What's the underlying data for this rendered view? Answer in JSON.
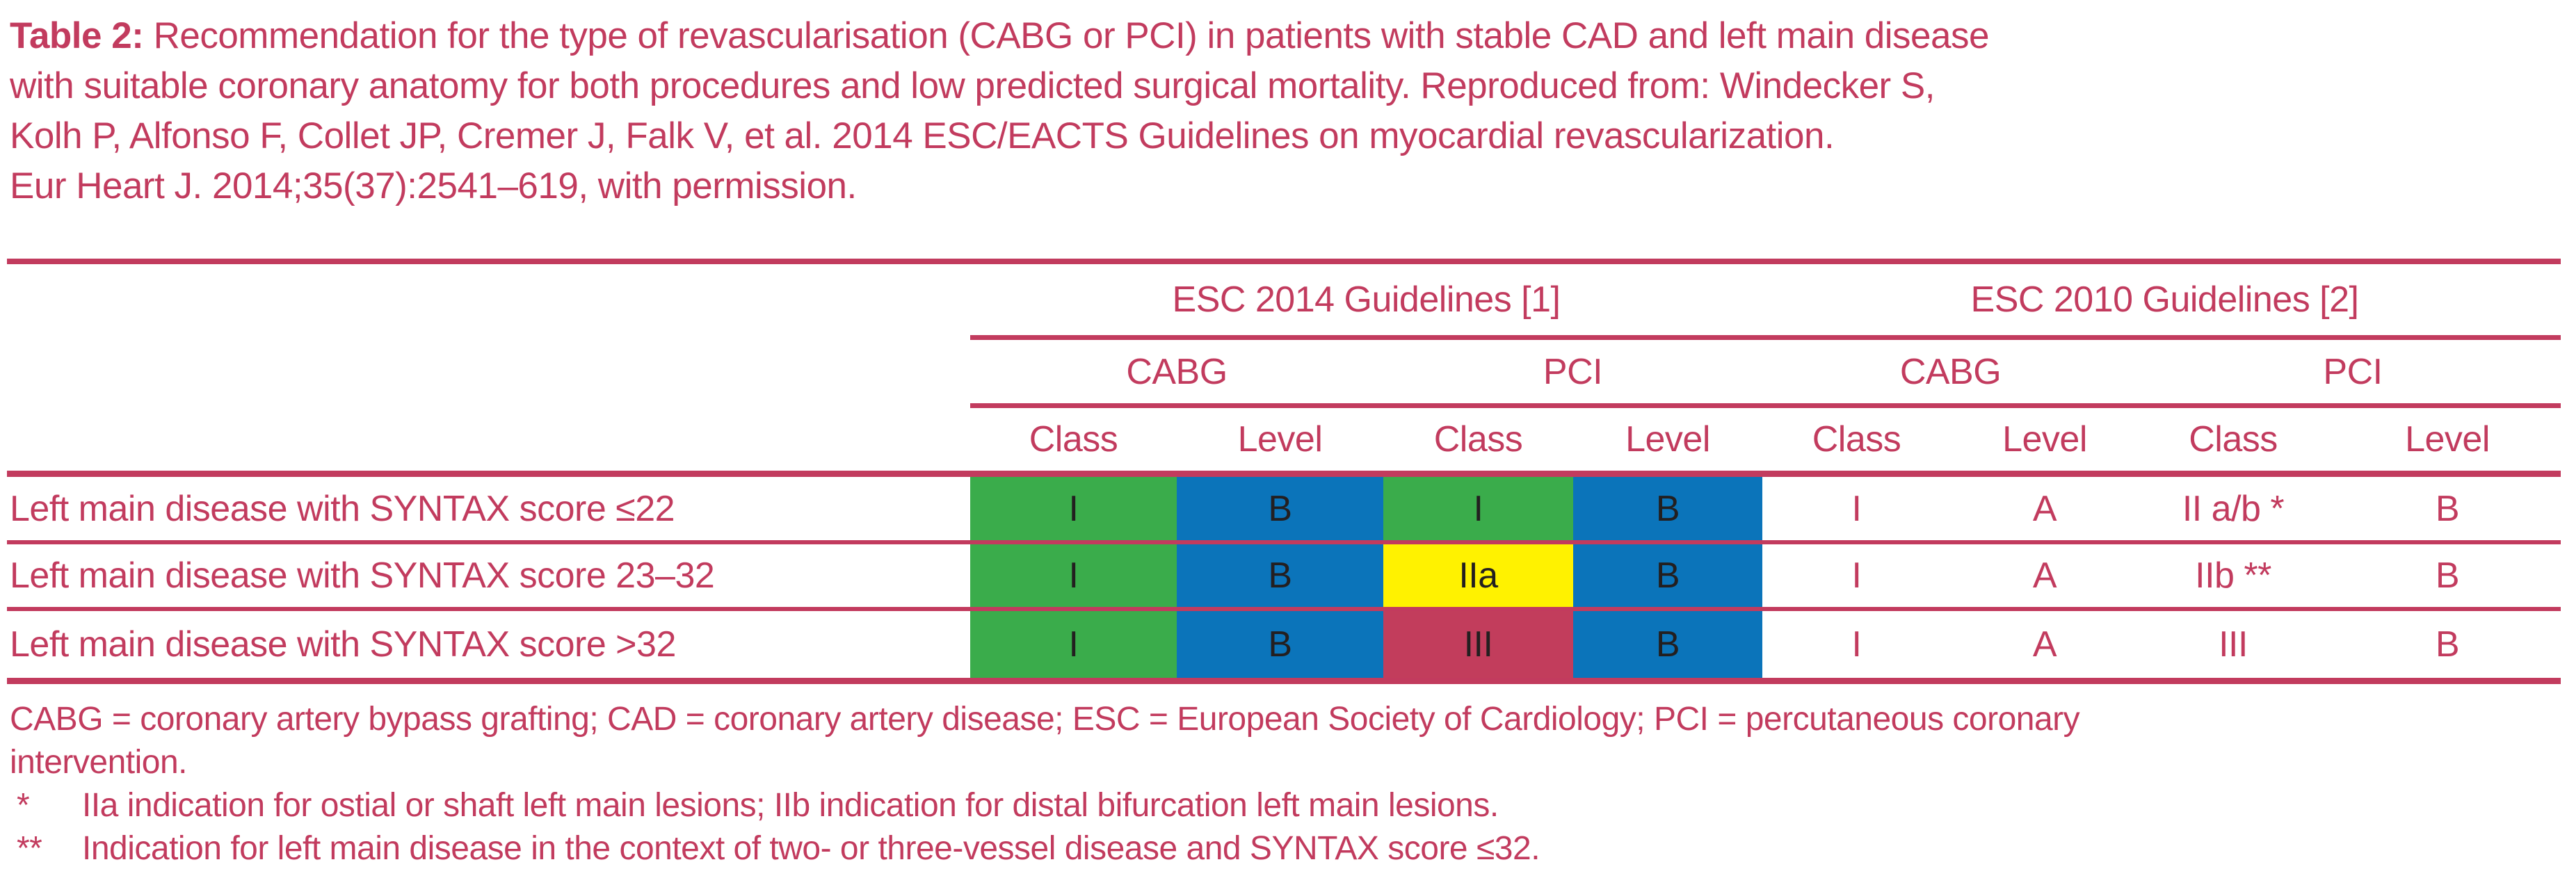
{
  "colors": {
    "crimson": "#c23b5e",
    "green": "#3aac4b",
    "blue": "#0b74ba",
    "yellow": "#fff200",
    "red_cell": "#c23d5c",
    "cell_text": "#231f20",
    "none": "none"
  },
  "caption": {
    "label": "Table 2:",
    "line1": " Recommendation for the type of revascularisation (CABG or PCI) in patients with stable CAD and left main disease",
    "line2": "with suitable coronary anatomy for both procedures and low predicted surgical mortality. Reproduced from: Windecker S,",
    "line3": "Kolh P, Alfonso F, Collet JP, Cremer J, Falk V, et al. 2014 ESC/EACTS Guidelines on myocardial revascularization.",
    "line4": "Eur Heart J. 2014;35(37):2541–619, with permission."
  },
  "table": {
    "group_headers": [
      "ESC 2014 Guidelines [1]",
      "ESC 2010 Guidelines [2]"
    ],
    "subgroup_headers": [
      "CABG",
      "PCI",
      "CABG",
      "PCI"
    ],
    "column_headers": [
      "Class",
      "Level",
      "Class",
      "Level",
      "Class",
      "Level",
      "Class",
      "Level"
    ],
    "rows": [
      {
        "label": "Left main disease with SYNTAX score ≤22",
        "cells": [
          {
            "text": "I",
            "bg": "green"
          },
          {
            "text": "B",
            "bg": "blue"
          },
          {
            "text": "I",
            "bg": "green"
          },
          {
            "text": "B",
            "bg": "blue"
          },
          {
            "text": "I",
            "bg": "none"
          },
          {
            "text": "A",
            "bg": "none"
          },
          {
            "text": "II a/b *",
            "bg": "none"
          },
          {
            "text": "B",
            "bg": "none"
          }
        ]
      },
      {
        "label": "Left main disease with SYNTAX score 23–32",
        "cells": [
          {
            "text": "I",
            "bg": "green"
          },
          {
            "text": "B",
            "bg": "blue"
          },
          {
            "text": "IIa",
            "bg": "yellow"
          },
          {
            "text": "B",
            "bg": "blue"
          },
          {
            "text": "I",
            "bg": "none"
          },
          {
            "text": "A",
            "bg": "none"
          },
          {
            "text": "IIb **",
            "bg": "none"
          },
          {
            "text": "B",
            "bg": "none"
          }
        ]
      },
      {
        "label": "Left main disease with SYNTAX score >32",
        "cells": [
          {
            "text": "I",
            "bg": "green"
          },
          {
            "text": "B",
            "bg": "blue"
          },
          {
            "text": "III",
            "bg": "red_cell"
          },
          {
            "text": "B",
            "bg": "blue"
          },
          {
            "text": "I",
            "bg": "none"
          },
          {
            "text": "A",
            "bg": "none"
          },
          {
            "text": "III",
            "bg": "none"
          },
          {
            "text": "B",
            "bg": "none"
          }
        ]
      }
    ]
  },
  "footnotes": {
    "abbrev_line1": "CABG = coronary artery bypass grafting; CAD = coronary artery disease; ESC = European Society of Cardiology; PCI = percutaneous coronary",
    "abbrev_line2": "intervention.",
    "notes": [
      {
        "marker": "*",
        "text": "IIa indication for ostial or shaft left main lesions; IIb indication for distal bifurcation left main lesions."
      },
      {
        "marker": "**",
        "text": "Indication for left main disease in the context of two- or three-vessel disease and SYNTAX score ≤32."
      }
    ]
  }
}
